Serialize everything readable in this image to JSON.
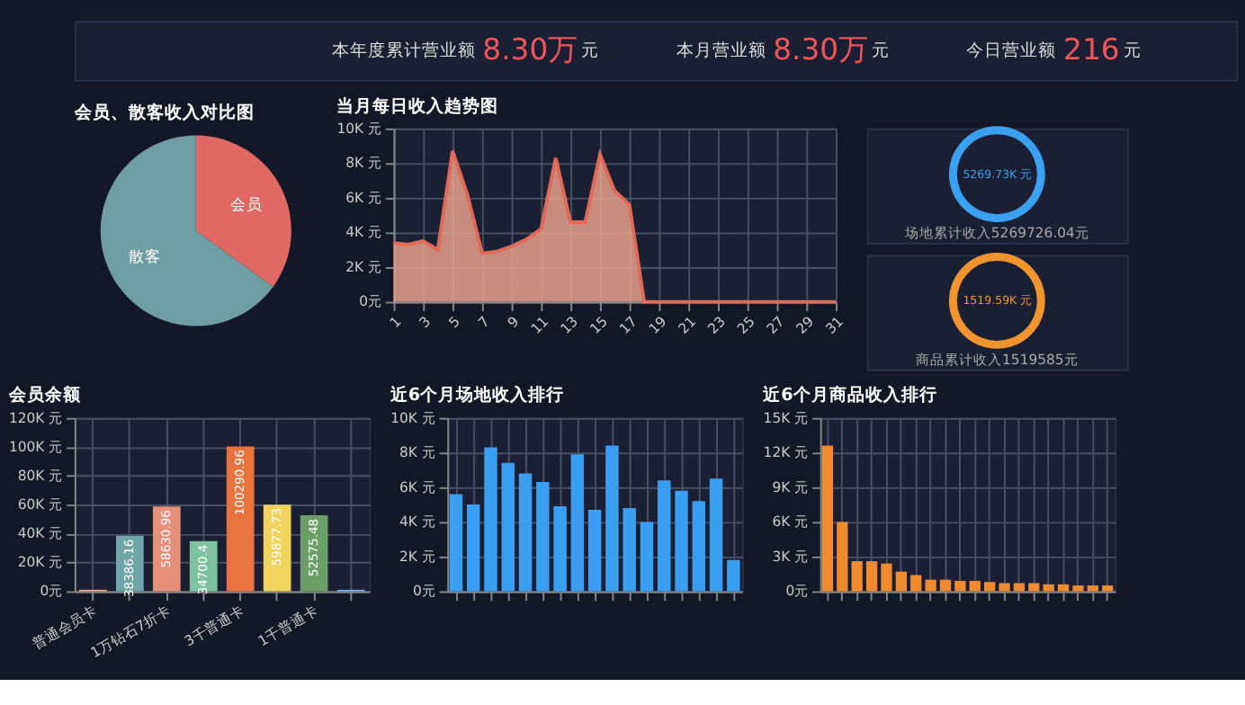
{
  "chart_data": [
    {
      "type": "other",
      "color": "#f0555a",
      "annotations": [
        "本年度累计营业额",
        "8.30万",
        "元",
        "本月营业额",
        "8.30万",
        "元",
        "今日营业额",
        "216",
        "元"
      ]
    },
    {
      "type": "pie",
      "title": "会员、散客收入对比图",
      "categories": [
        "会员",
        "散客"
      ],
      "values": [
        35,
        65
      ],
      "colors": [
        "#e06a63",
        "#6e9ea3"
      ]
    },
    {
      "type": "area",
      "title": "当月每日收入趋势图",
      "color": "#e8a08a",
      "x": [
        1,
        2,
        3,
        4,
        5,
        6,
        7,
        8,
        9,
        10,
        11,
        12,
        13,
        14,
        15,
        16,
        17,
        18,
        19,
        20,
        21,
        22,
        23,
        24,
        25,
        26,
        27,
        28,
        29,
        30,
        31
      ],
      "values": [
        3400,
        3300,
        3500,
        3000,
        8700,
        6200,
        2800,
        2900,
        3200,
        3600,
        4200,
        8300,
        4600,
        4600,
        8500,
        6400,
        5600,
        0,
        0,
        0,
        0,
        0,
        0,
        0,
        0,
        0,
        0,
        0,
        0,
        0,
        0
      ],
      "xlim": [
        1,
        31
      ],
      "xticks": [
        1,
        3,
        5,
        7,
        9,
        11,
        13,
        15,
        17,
        19,
        21,
        23,
        25,
        27,
        29,
        31
      ],
      "ylim": [
        0,
        10000
      ],
      "yticks": [
        {
          "value": 0,
          "label": "0元"
        },
        {
          "value": 2000,
          "label": "2K 元"
        },
        {
          "value": 4000,
          "label": "4K 元"
        },
        {
          "value": 6000,
          "label": "6K 元"
        },
        {
          "value": 8000,
          "label": "8K 元"
        },
        {
          "value": 10000,
          "label": "10K 元"
        }
      ],
      "grid": true
    },
    {
      "type": "donut",
      "categories": [
        null
      ],
      "values": [
        100
      ],
      "colors": [
        "#3aa0f0"
      ],
      "annotations": [
        "5269.73K 元",
        "场地累计收入5269726.04元"
      ]
    },
    {
      "type": "donut",
      "categories": [
        null
      ],
      "values": [
        100
      ],
      "colors": [
        "#f0952e"
      ],
      "annotations": [
        "1519.59K 元",
        "商品累计收入1519585元"
      ]
    },
    {
      "type": "bar",
      "title": "会员余额",
      "categories": [
        "普通会员卡",
        null,
        "1万钻石7折卡",
        null,
        "3千普通卡",
        null,
        "1千普通卡",
        null
      ],
      "values": [
        1000,
        38386.16,
        58630.96,
        34700.4,
        100290.96,
        59877.73,
        52575.48,
        1000
      ],
      "colors": [
        "#f0b59a",
        "#6fa4a8",
        "#e8917a",
        "#7cc29f",
        "#e8733f",
        "#f0d35c",
        "#6a9f66",
        "#7fb6e0"
      ],
      "value_labels": [
        null,
        "38386.16",
        "58630.96",
        "34700.4",
        "100290.96",
        "59877.73",
        "52575.48",
        null
      ],
      "ylim": [
        0,
        120000
      ],
      "yticks": [
        {
          "value": 0,
          "label": "0元"
        },
        {
          "value": 20000,
          "label": "20K 元"
        },
        {
          "value": 40000,
          "label": "40K 元"
        },
        {
          "value": 60000,
          "label": "60K 元"
        },
        {
          "value": 80000,
          "label": "80K 元"
        },
        {
          "value": 100000,
          "label": "100K 元"
        },
        {
          "value": 120000,
          "label": "120K 元"
        }
      ],
      "grid": true
    },
    {
      "type": "bar",
      "title": "近6个月场地收入排行",
      "color": "#3a9ff0",
      "categories": [
        null,
        null,
        null,
        null,
        null,
        null,
        null,
        null,
        null,
        null,
        null,
        null,
        null,
        null,
        null,
        null,
        null
      ],
      "values": [
        5600,
        5000,
        8300,
        7400,
        6800,
        6300,
        4900,
        7900,
        4700,
        8400,
        4800,
        4000,
        6400,
        5800,
        5200,
        6500,
        1800
      ],
      "ylim": [
        0,
        10000
      ],
      "yticks": [
        {
          "value": 0,
          "label": "0元"
        },
        {
          "value": 2000,
          "label": "2K 元"
        },
        {
          "value": 4000,
          "label": "4K 元"
        },
        {
          "value": 6000,
          "label": "6K 元"
        },
        {
          "value": 8000,
          "label": "8K 元"
        },
        {
          "value": 10000,
          "label": "10K 元"
        }
      ],
      "grid": true
    },
    {
      "type": "bar",
      "title": "近6个月商品收入排行",
      "color": "#f08a2e",
      "categories": [
        null,
        null,
        null,
        null,
        null,
        null,
        null,
        null,
        null,
        null,
        null,
        null,
        null,
        null,
        null,
        null,
        null,
        null,
        null,
        null
      ],
      "values": [
        12600,
        6000,
        2600,
        2600,
        2400,
        1700,
        1400,
        1000,
        1000,
        900,
        900,
        800,
        700,
        700,
        700,
        600,
        600,
        500,
        500,
        500
      ],
      "ylim": [
        0,
        15000
      ],
      "yticks": [
        {
          "value": 0,
          "label": "0元"
        },
        {
          "value": 3000,
          "label": "3K 元"
        },
        {
          "value": 6000,
          "label": "6K 元"
        },
        {
          "value": 9000,
          "label": "9K 元"
        },
        {
          "value": 12000,
          "label": "12K 元"
        },
        {
          "value": 15000,
          "label": "15K 元"
        }
      ],
      "grid": true
    }
  ]
}
